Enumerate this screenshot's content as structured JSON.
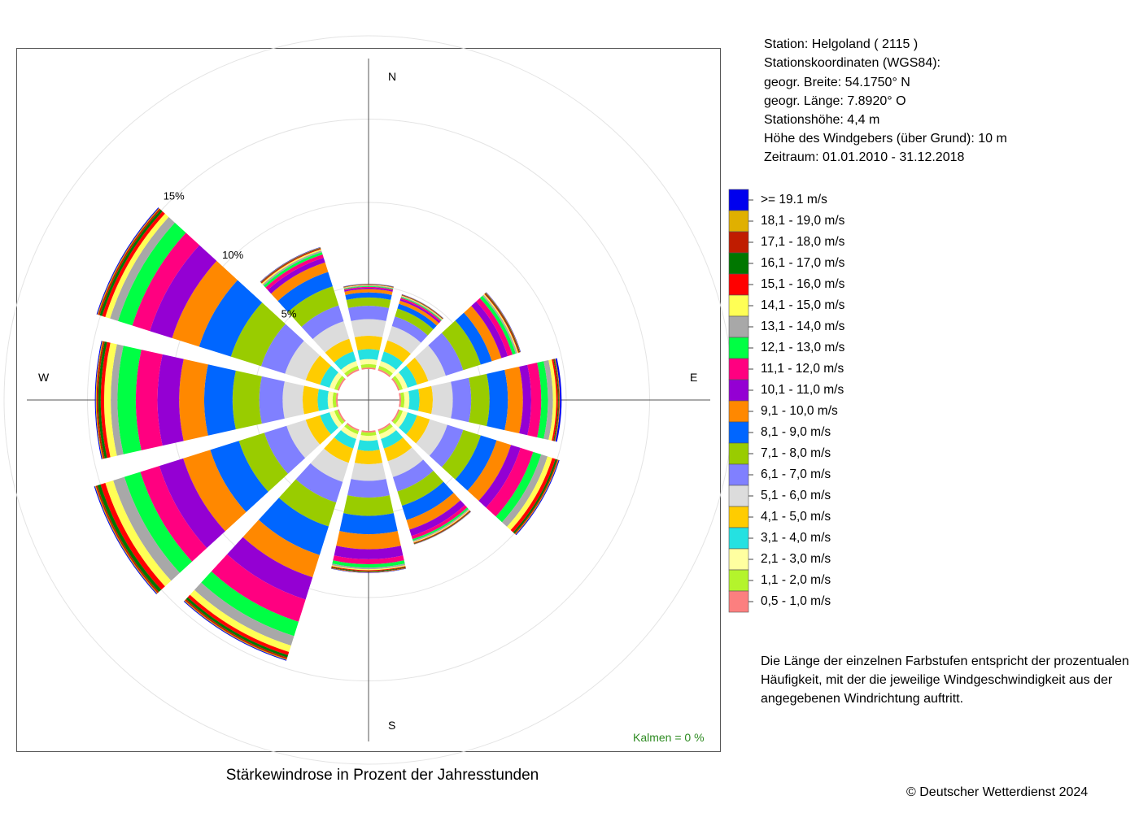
{
  "station_info": {
    "station": "Station:  Helgoland  ( 2115 )",
    "coords_title": "Stationskoordinaten (WGS84):",
    "latitude": "geogr. Breite: 54.1750° N",
    "longitude": "geogr. Länge:   7.8920° O",
    "elevation": "Stationshöhe: 4,4 m",
    "anemometer_height": "Höhe des Windgebers (über Grund): 10 m",
    "period": "Zeitraum: 01.01.2010 - 31.12.2018"
  },
  "note": {
    "line1": "Die Länge der einzelnen Farbstufen entspricht der prozentualen",
    "line2": "Häufigkeit, mit der die jeweilige Windgeschwindigkeit aus der",
    "line3": "angegebenen Windrichtung auftritt."
  },
  "copyright": "© Deutscher Wetterdienst  2024",
  "chart_data": {
    "type": "polar-stacked-bar",
    "title": "Stärkewindrose in Prozent der Jahresstunden",
    "calm_label": "Kalmen  =  0 %",
    "cardinals": {
      "n": "N",
      "e": "E",
      "s": "S",
      "w": "W"
    },
    "ring_labels": [
      "5%",
      "10%",
      "15%"
    ],
    "ring_values": [
      5,
      10,
      15
    ],
    "radial_max": 20,
    "directions_deg": [
      0,
      30,
      60,
      90,
      120,
      150,
      180,
      210,
      240,
      270,
      300,
      330
    ],
    "classes": [
      {
        "label": "0,5 - 1,0 m/s",
        "color": "#fc7f7f"
      },
      {
        "label": "1,1 - 2,0 m/s",
        "color": "#b4f42c"
      },
      {
        "label": "2,1 - 3,0 m/s",
        "color": "#ffffa0"
      },
      {
        "label": "3,1 - 4,0 m/s",
        "color": "#25e1e1"
      },
      {
        "label": "4,1 - 5,0 m/s",
        "color": "#ffcc00"
      },
      {
        "label": "5,1 - 6,0 m/s",
        "color": "#dcdcdc"
      },
      {
        "label": "6,1 - 7,0 m/s",
        "color": "#8080ff"
      },
      {
        "label": "7,1 - 8,0 m/s",
        "color": "#99cc00"
      },
      {
        "label": "8,1 - 9,0 m/s",
        "color": "#0066ff"
      },
      {
        "label": "9,1 - 10,0 m/s",
        "color": "#ff8800"
      },
      {
        "label": "10,1 - 11,0 m/s",
        "color": "#9400d3"
      },
      {
        "label": "11,1 - 12,0 m/s",
        "color": "#ff0080"
      },
      {
        "label": "12,1 - 13,0 m/s",
        "color": "#00ff44"
      },
      {
        "label": "13,1 - 14,0 m/s",
        "color": "#a8a8a8"
      },
      {
        "label": "14,1 - 15,0 m/s",
        "color": "#ffff55"
      },
      {
        "label": "15,1 - 16,0 m/s",
        "color": "#ff0000"
      },
      {
        "label": "16,1 - 17,0 m/s",
        "color": "#007700"
      },
      {
        "label": "17,1 - 18,0 m/s",
        "color": "#c01c00"
      },
      {
        "label": "18,1 - 19,0 m/s",
        "color": "#e0b000"
      },
      {
        "label": ">= 19.1 m/s",
        "color": "#0000ee"
      }
    ],
    "series": [
      {
        "dir": 0,
        "values": [
          0.1,
          0.2,
          0.3,
          0.6,
          0.8,
          1.0,
          0.8,
          0.5,
          0.3,
          0.2,
          0.08,
          0.06,
          0.04,
          0.04,
          0.03,
          0.02,
          0.02,
          0.01,
          0.01,
          0.01
        ]
      },
      {
        "dir": 30,
        "values": [
          0.1,
          0.2,
          0.3,
          0.6,
          0.7,
          0.9,
          0.6,
          0.5,
          0.3,
          0.2,
          0.1,
          0.08,
          0.05,
          0.05,
          0.04,
          0.02,
          0.02,
          0.02,
          0.01,
          0.01
        ]
      },
      {
        "dir": 60,
        "values": [
          0.1,
          0.2,
          0.3,
          0.6,
          0.7,
          1.1,
          1.1,
          1.1,
          0.7,
          0.6,
          0.4,
          0.3,
          0.2,
          0.1,
          0.06,
          0.05,
          0.04,
          0.03,
          0.02,
          0.02
        ]
      },
      {
        "dir": 90,
        "values": [
          0.1,
          0.2,
          0.3,
          0.6,
          0.8,
          1.2,
          1.1,
          1.1,
          1.1,
          0.9,
          0.5,
          0.6,
          0.4,
          0.3,
          0.2,
          0.1,
          0.05,
          0.04,
          0.03,
          0.1
        ]
      },
      {
        "dir": 120,
        "values": [
          0.1,
          0.2,
          0.3,
          0.6,
          0.8,
          1.1,
          1.0,
          1.1,
          1.0,
          0.9,
          0.6,
          0.8,
          0.5,
          0.4,
          0.3,
          0.2,
          0.1,
          0.06,
          0.04,
          0.05
        ]
      },
      {
        "dir": 150,
        "values": [
          0.1,
          0.2,
          0.3,
          0.6,
          0.8,
          1.0,
          0.9,
          0.9,
          0.9,
          0.6,
          0.4,
          0.2,
          0.1,
          0.08,
          0.05,
          0.04,
          0.03,
          0.02,
          0.01,
          0.01
        ]
      },
      {
        "dir": 180,
        "values": [
          0.1,
          0.2,
          0.3,
          0.6,
          0.8,
          1.0,
          1.0,
          1.1,
          1.1,
          0.9,
          0.6,
          0.3,
          0.2,
          0.1,
          0.06,
          0.05,
          0.04,
          0.03,
          0.02,
          0.02
        ]
      },
      {
        "dir": 210,
        "values": [
          0.1,
          0.2,
          0.3,
          0.6,
          0.9,
          1.2,
          1.3,
          1.5,
          1.8,
          1.4,
          1.4,
          1.4,
          0.9,
          0.6,
          0.4,
          0.2,
          0.15,
          0.1,
          0.05,
          0.05
        ]
      },
      {
        "dir": 240,
        "values": [
          0.1,
          0.2,
          0.3,
          0.6,
          0.9,
          1.2,
          1.4,
          1.6,
          1.8,
          1.7,
          1.5,
          1.2,
          1.0,
          0.7,
          0.5,
          0.3,
          0.2,
          0.1,
          0.05,
          0.05
        ]
      },
      {
        "dir": 270,
        "values": [
          0.1,
          0.2,
          0.3,
          0.6,
          0.9,
          1.2,
          1.4,
          1.6,
          1.7,
          1.5,
          1.3,
          1.3,
          1.1,
          0.4,
          0.4,
          0.2,
          0.15,
          0.1,
          0.05,
          0.05
        ]
      },
      {
        "dir": 300,
        "values": [
          0.1,
          0.2,
          0.3,
          0.6,
          0.9,
          1.3,
          1.5,
          1.9,
          2.0,
          1.7,
          1.4,
          1.1,
          0.9,
          0.5,
          0.3,
          0.2,
          0.15,
          0.1,
          0.05,
          0.05
        ]
      },
      {
        "dir": 330,
        "values": [
          0.1,
          0.2,
          0.3,
          0.6,
          0.8,
          1.1,
          1.0,
          1.2,
          0.9,
          0.6,
          0.3,
          0.2,
          0.15,
          0.1,
          0.08,
          0.05,
          0.03,
          0.02,
          0.02,
          0.02
        ]
      }
    ]
  }
}
